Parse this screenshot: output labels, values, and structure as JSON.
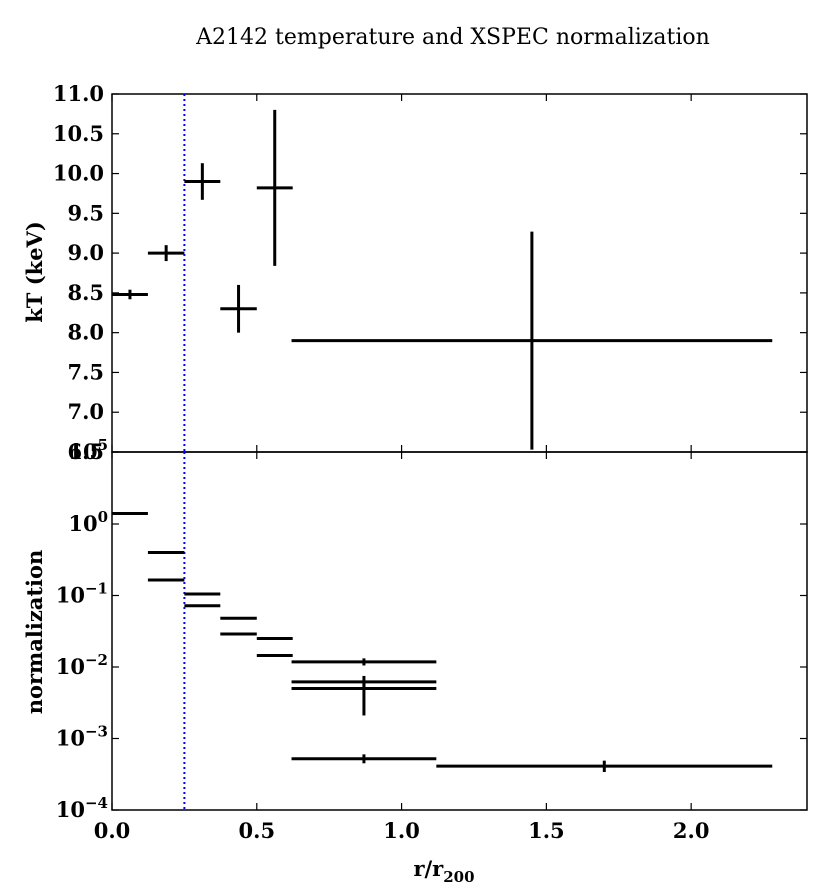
{
  "title": "A2142 temperature and XSPEC normalization",
  "marker_color": "#0000ff",
  "chart_data": [
    {
      "type": "scatter",
      "panel": "top",
      "xlabel": "r/r",
      "xlabel_sub": "200",
      "ylabel": "kT (keV)",
      "xlim": [
        0.0,
        2.4
      ],
      "ylim": [
        6.5,
        11.0
      ],
      "x_ticks": [
        0.0,
        0.5,
        1.0,
        1.5,
        2.0
      ],
      "y_ticks": [
        "6.5",
        "7.0",
        "7.5",
        "8.0",
        "8.5",
        "9.0",
        "9.5",
        "10.0",
        "10.5",
        "11.0"
      ],
      "vline_x": 0.25,
      "points": [
        {
          "x": 0.062,
          "xerr": 0.062,
          "y": 8.48,
          "yerr": 0.06
        },
        {
          "x": 0.187,
          "xerr": 0.063,
          "y": 9.0,
          "yerr": 0.1
        },
        {
          "x": 0.312,
          "xerr": 0.062,
          "y": 9.9,
          "yerr": 0.23
        },
        {
          "x": 0.437,
          "xerr": 0.063,
          "y": 8.3,
          "yerr": 0.3
        },
        {
          "x": 0.562,
          "xerr": 0.062,
          "y": 9.82,
          "yerr": 0.98
        },
        {
          "x": 1.45,
          "xerr": 0.83,
          "y": 7.9,
          "yerr": 1.37
        }
      ]
    },
    {
      "type": "scatter",
      "panel": "bottom",
      "xlabel": "r/r",
      "xlabel_sub": "200",
      "ylabel": "normalization",
      "yscale": "log",
      "xlim": [
        0.0,
        2.4
      ],
      "ylim": [
        0.0001,
        100000
      ],
      "x_ticks": [
        "0.0",
        "0.5",
        "1.0",
        "1.5",
        "2.0"
      ],
      "y_ticks": [
        {
          "base": "10",
          "exp": "−4",
          "value": 0.0001
        },
        {
          "base": "10",
          "exp": "−3",
          "value": 0.001
        },
        {
          "base": "10",
          "exp": "−2",
          "value": 0.01
        },
        {
          "base": "10",
          "exp": "−1",
          "value": 0.1
        },
        {
          "base": "10",
          "exp": "0",
          "value": 1
        },
        {
          "base": "10",
          "exp": "5",
          "value": 100000
        }
      ],
      "vline_x": 0.25,
      "points": [
        {
          "x": 0.062,
          "xerr": 0.062,
          "y": 1.4
        },
        {
          "x": 0.187,
          "xerr": 0.063,
          "y": 0.4
        },
        {
          "x": 0.187,
          "xerr": 0.063,
          "y": 0.165
        },
        {
          "x": 0.312,
          "xerr": 0.062,
          "y": 0.105
        },
        {
          "x": 0.312,
          "xerr": 0.062,
          "y": 0.072
        },
        {
          "x": 0.437,
          "xerr": 0.063,
          "y": 0.048
        },
        {
          "x": 0.437,
          "xerr": 0.063,
          "y": 0.029
        },
        {
          "x": 0.562,
          "xerr": 0.062,
          "y": 0.025
        },
        {
          "x": 0.562,
          "xerr": 0.062,
          "y": 0.0145
        },
        {
          "x": 0.87,
          "xerr": 0.25,
          "y": 0.0118,
          "ylo": 0.0105,
          "yhi": 0.0132
        },
        {
          "x": 0.87,
          "xerr": 0.25,
          "y": 0.0062,
          "ylo": 0.005,
          "yhi": 0.0075
        },
        {
          "x": 0.87,
          "xerr": 0.25,
          "y": 0.005,
          "ylo": 0.0021,
          "yhi": 0.0062
        },
        {
          "x": 0.87,
          "xerr": 0.25,
          "y": 0.00052,
          "ylo": 0.00045,
          "yhi": 0.0006
        },
        {
          "x": 1.7,
          "xerr": 0.58,
          "y": 0.00041,
          "ylo": 0.00034,
          "yhi": 0.00049
        }
      ]
    }
  ]
}
